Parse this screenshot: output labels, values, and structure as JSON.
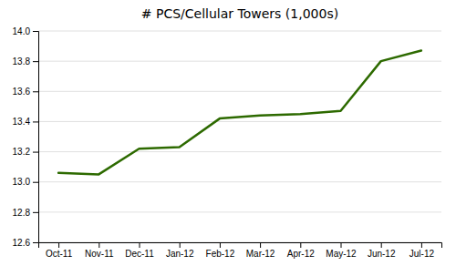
{
  "chart_data": {
    "type": "line",
    "title": "# PCS/Cellular Towers (1,000s)",
    "categories": [
      "Oct-11",
      "Nov-11",
      "Dec-11",
      "Jan-12",
      "Feb-12",
      "Mar-12",
      "Apr-12",
      "May-12",
      "Jun-12",
      "Jul-12"
    ],
    "values": [
      13.06,
      13.05,
      13.22,
      13.23,
      13.42,
      13.44,
      13.45,
      13.47,
      13.8,
      13.87
    ],
    "color": "#2d6a00",
    "ylim": [
      12.6,
      14.0
    ],
    "yticks": [
      12.6,
      12.8,
      {
        "value": 13.0,
        "label": "13.0"
      },
      13.2,
      13.4,
      13.6,
      13.8,
      {
        "value": 14.0,
        "label": "14.0"
      }
    ],
    "grid": true
  }
}
